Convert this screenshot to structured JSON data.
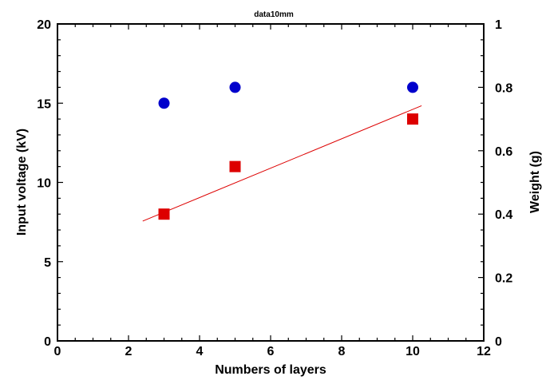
{
  "chart_data": {
    "type": "scatter",
    "title": "data10mm",
    "xlabel": "Numbers of layers",
    "ylabel_left": "Input voltage (kV)",
    "ylabel_right": "Weight (g)",
    "xlim": [
      0,
      12
    ],
    "ylim_left": [
      0,
      20
    ],
    "ylim_right": [
      0,
      1
    ],
    "x_ticks": [
      0,
      2,
      4,
      6,
      8,
      10,
      12
    ],
    "y_ticks_left": [
      0,
      5,
      10,
      15,
      20
    ],
    "y_ticks_right": [
      0,
      0.2,
      0.4,
      0.6,
      0.8,
      1
    ],
    "y_tick_labels_right": [
      "0",
      "0.2",
      "0.4",
      "0.6",
      "0.8",
      "1"
    ],
    "grid": false,
    "series": [
      {
        "axis": "left",
        "marker": "circle",
        "color": "#0000cc",
        "x": [
          3,
          5,
          10
        ],
        "y": [
          15,
          16,
          16
        ]
      },
      {
        "axis": "right",
        "marker": "square",
        "color": "#dd0000",
        "x": [
          3,
          5,
          10
        ],
        "y": [
          0.4,
          0.55,
          0.7
        ],
        "trendline": {
          "x": [
            2.4,
            10.25
          ],
          "y": [
            0.378,
            0.742
          ]
        }
      }
    ]
  }
}
